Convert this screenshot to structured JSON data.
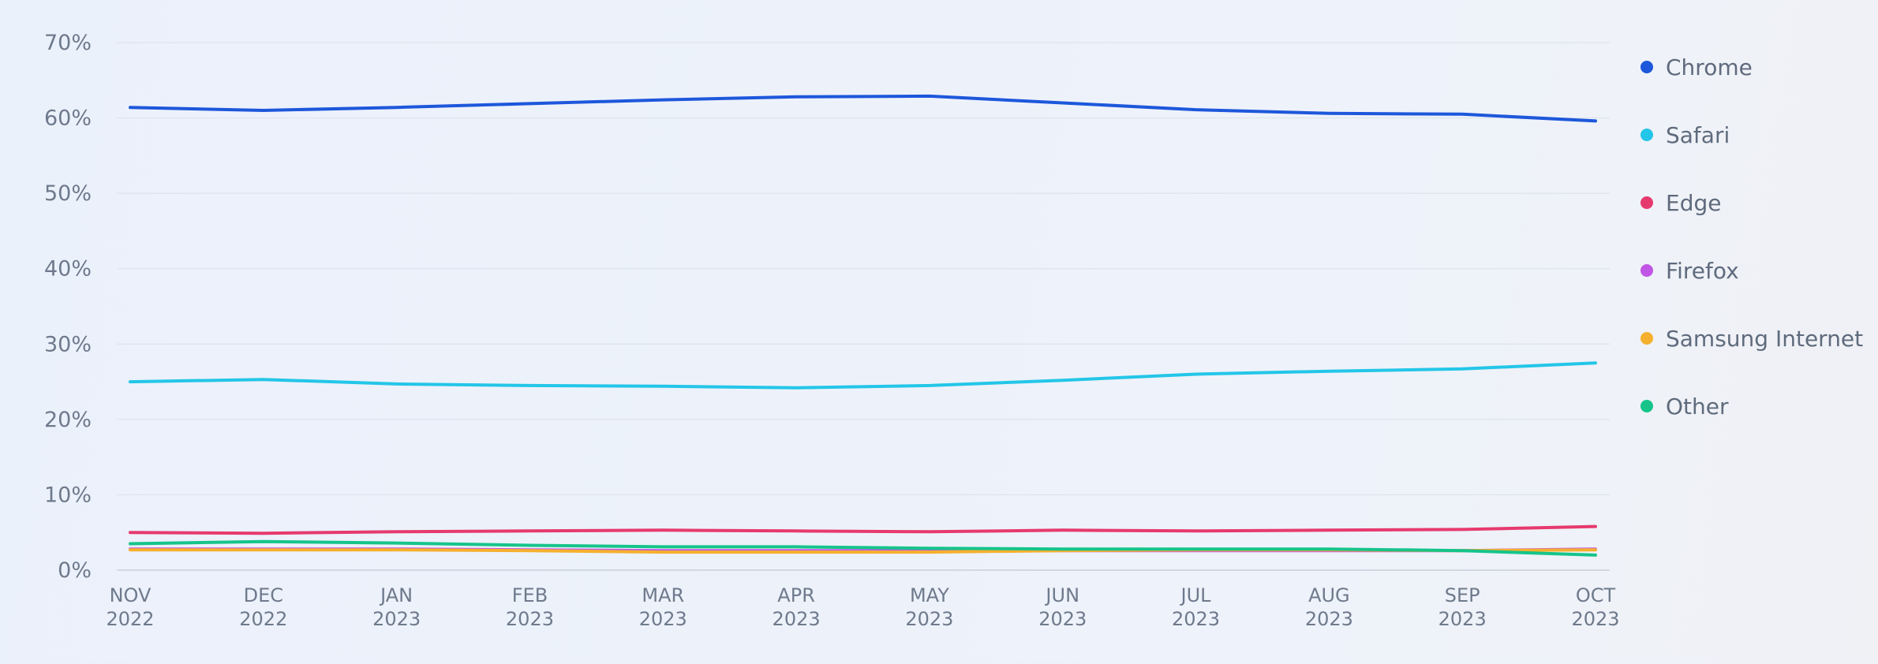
{
  "chart_data": {
    "type": "line",
    "title": "",
    "xlabel": "",
    "ylabel": "",
    "categories": [
      [
        "NOV",
        "2022"
      ],
      [
        "DEC",
        "2022"
      ],
      [
        "JAN",
        "2023"
      ],
      [
        "FEB",
        "2023"
      ],
      [
        "MAR",
        "2023"
      ],
      [
        "APR",
        "2023"
      ],
      [
        "MAY",
        "2023"
      ],
      [
        "JUN",
        "2023"
      ],
      [
        "JUL",
        "2023"
      ],
      [
        "AUG",
        "2023"
      ],
      [
        "SEP",
        "2023"
      ],
      [
        "OCT",
        "2023"
      ]
    ],
    "ylim": [
      0,
      70
    ],
    "y_ticks": [
      0,
      10,
      20,
      30,
      40,
      50,
      60,
      70
    ],
    "y_tick_suffix": "%",
    "grid": true,
    "legend_position": "right",
    "series": [
      {
        "name": "Chrome",
        "color": "#1d57db",
        "values": [
          61.4,
          61.0,
          61.4,
          61.9,
          62.4,
          62.8,
          62.9,
          62.0,
          61.1,
          60.6,
          60.5,
          59.6
        ]
      },
      {
        "name": "Safari",
        "color": "#23c6e8",
        "values": [
          25.0,
          25.3,
          24.7,
          24.5,
          24.4,
          24.2,
          24.5,
          25.2,
          26.0,
          26.4,
          26.7,
          27.5
        ]
      },
      {
        "name": "Edge",
        "color": "#e63a6e",
        "values": [
          5.0,
          4.9,
          5.1,
          5.2,
          5.3,
          5.2,
          5.1,
          5.3,
          5.2,
          5.3,
          5.4,
          5.8
        ]
      },
      {
        "name": "Firefox",
        "color": "#c155e6",
        "values": [
          2.8,
          2.8,
          2.8,
          2.7,
          2.6,
          2.6,
          2.6,
          2.6,
          2.6,
          2.6,
          2.6,
          2.8
        ]
      },
      {
        "name": "Samsung Internet",
        "color": "#f5b02e",
        "values": [
          2.7,
          2.7,
          2.7,
          2.6,
          2.4,
          2.4,
          2.4,
          2.6,
          2.7,
          2.7,
          2.6,
          2.7
        ]
      },
      {
        "name": "Other",
        "color": "#16c48a",
        "values": [
          3.5,
          3.8,
          3.6,
          3.3,
          3.1,
          3.1,
          2.9,
          2.8,
          2.8,
          2.8,
          2.6,
          2.0
        ]
      }
    ]
  }
}
